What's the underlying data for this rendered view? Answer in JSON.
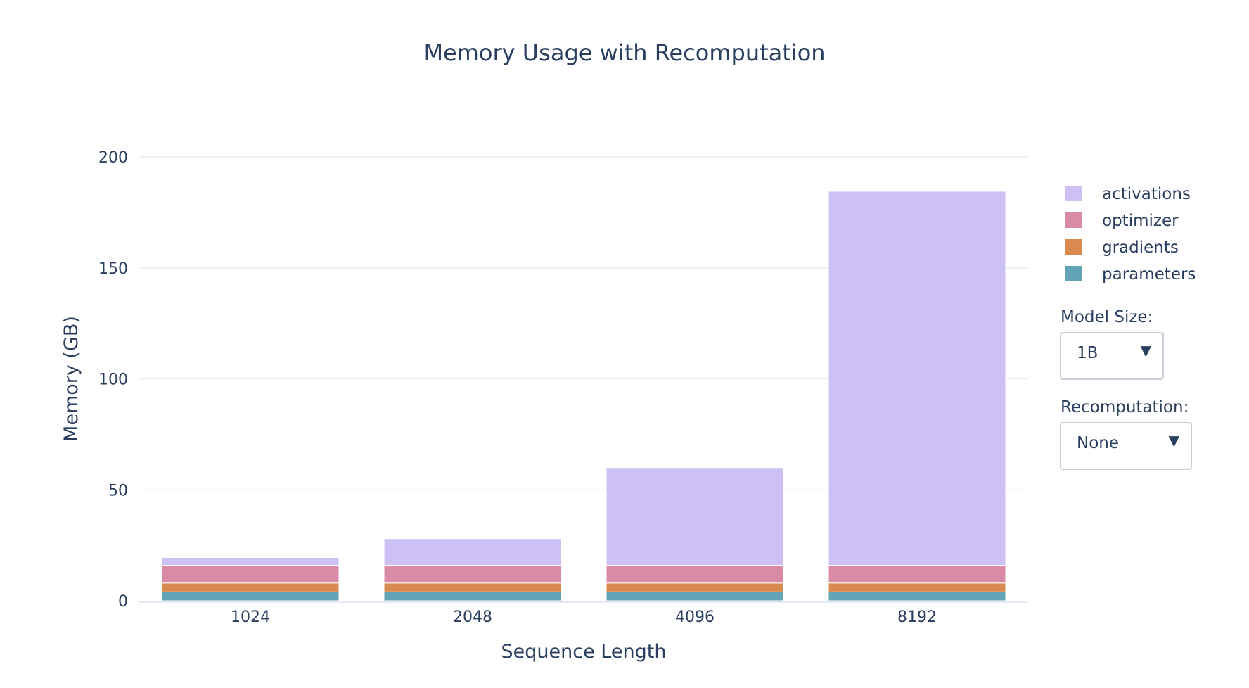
{
  "chart_data": {
    "type": "bar",
    "barmode": "stack",
    "title": "Memory Usage with Recomputation",
    "xlabel": "Sequence Length",
    "ylabel": "Memory (GB)",
    "categories": [
      "1024",
      "2048",
      "4096",
      "8192"
    ],
    "ylim": [
      0,
      200
    ],
    "yticks": [
      "0",
      "50",
      "100",
      "150",
      "200"
    ],
    "grid": true,
    "legend_position": "right",
    "series": [
      {
        "name": "parameters",
        "color": "#62a3b5",
        "values": [
          4,
          4,
          4,
          4
        ]
      },
      {
        "name": "gradients",
        "color": "#d98b4f",
        "values": [
          4,
          4,
          4,
          4
        ]
      },
      {
        "name": "optimizer",
        "color": "#d98ba6",
        "values": [
          8,
          8,
          8,
          8
        ]
      },
      {
        "name": "activations",
        "color": "#cdc0f4",
        "values": [
          3.5,
          12,
          44,
          168.5
        ]
      }
    ]
  },
  "controls": {
    "model_size": {
      "label": "Model Size:",
      "value": "1B",
      "arrow": "▼"
    },
    "recomputation": {
      "label": "Recomputation:",
      "value": "None",
      "arrow": "▼"
    }
  }
}
